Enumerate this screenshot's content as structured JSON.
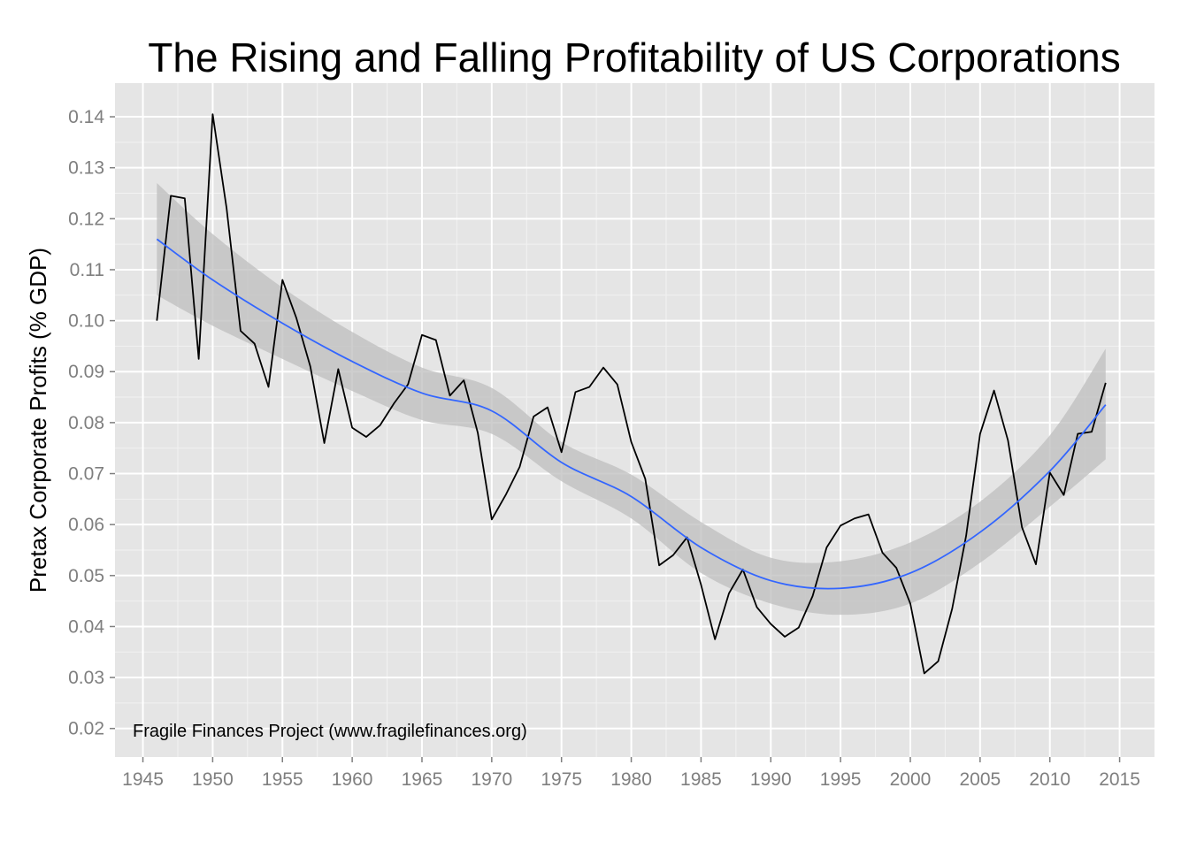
{
  "chart_data": {
    "type": "line",
    "title": "The Rising and Falling Profitability of US Corporations",
    "xlabel": "",
    "ylabel": "Pretax Corporate Profits (% GDP)",
    "annotation": "Fragile Finances Project (www.fragilefinances.org)",
    "xlim": [
      1943,
      2017.5
    ],
    "ylim": [
      0.0144,
      0.1466
    ],
    "x_ticks": [
      1945,
      1950,
      1955,
      1960,
      1965,
      1970,
      1975,
      1980,
      1985,
      1990,
      1995,
      2000,
      2005,
      2010,
      2015
    ],
    "y_ticks": [
      0.02,
      0.03,
      0.04,
      0.05,
      0.06,
      0.07,
      0.08,
      0.09,
      0.1,
      0.11,
      0.12,
      0.13,
      0.14
    ],
    "y_tick_labels": [
      "0.02",
      "0.03",
      "0.04",
      "0.05",
      "0.06",
      "0.07",
      "0.08",
      "0.09",
      "0.10",
      "0.11",
      "0.12",
      "0.13",
      "0.14"
    ],
    "grid": true,
    "colors": {
      "panel": "#e5e5e5",
      "grid": "#ffffff",
      "line": "#000000",
      "smooth": "#3366ff",
      "band": "#bdbdbd"
    },
    "series": [
      {
        "type": "line",
        "x": [
          1946,
          1947,
          1948,
          1949,
          1950,
          1951,
          1952,
          1953,
          1954,
          1955,
          1956,
          1957,
          1958,
          1959,
          1960,
          1961,
          1962,
          1963,
          1964,
          1965,
          1966,
          1967,
          1968,
          1969,
          1970,
          1971,
          1972,
          1973,
          1974,
          1975,
          1976,
          1977,
          1978,
          1979,
          1980,
          1981,
          1982,
          1983,
          1984,
          1985,
          1986,
          1987,
          1988,
          1989,
          1990,
          1991,
          1992,
          1993,
          1994,
          1995,
          1996,
          1997,
          1998,
          1999,
          2000,
          2001,
          2002,
          2003,
          2004,
          2005,
          2006,
          2007,
          2008,
          2009,
          2010,
          2011,
          2012,
          2013,
          2014
        ],
        "values": [
          0.1,
          0.1245,
          0.124,
          0.0925,
          0.1405,
          0.122,
          0.098,
          0.0955,
          0.087,
          0.108,
          0.1005,
          0.091,
          0.076,
          0.0905,
          0.079,
          0.0772,
          0.0795,
          0.0838,
          0.0875,
          0.0972,
          0.0962,
          0.0853,
          0.0883,
          0.078,
          0.061,
          0.0658,
          0.0713,
          0.0812,
          0.083,
          0.0742,
          0.086,
          0.087,
          0.0908,
          0.0875,
          0.0762,
          0.069,
          0.052,
          0.054,
          0.0575,
          0.0482,
          0.0375,
          0.0465,
          0.0512,
          0.0438,
          0.0405,
          0.038,
          0.0398,
          0.046,
          0.0555,
          0.0598,
          0.0612,
          0.062,
          0.0545,
          0.0515,
          0.0445,
          0.0308,
          0.0332,
          0.0435,
          0.0578,
          0.0778,
          0.0863,
          0.0765,
          0.0595,
          0.0522,
          0.0702,
          0.0658,
          0.0778,
          0.0782,
          0.0878
        ]
      },
      {
        "type": "smooth",
        "x": [
          1946,
          1950,
          1955,
          1960,
          1965,
          1970,
          1975,
          1980,
          1985,
          1990,
          1995,
          2000,
          2005,
          2010,
          2014
        ],
        "values": [
          0.116,
          0.108,
          0.0995,
          0.092,
          0.0858,
          0.0823,
          0.0722,
          0.0655,
          0.0555,
          0.049,
          0.0475,
          0.0505,
          0.0585,
          0.0705,
          0.0835
        ],
        "lower": [
          0.105,
          0.099,
          0.0925,
          0.0862,
          0.0805,
          0.0778,
          0.0685,
          0.0612,
          0.0505,
          0.0445,
          0.0423,
          0.0445,
          0.0525,
          0.0635,
          0.0728
        ],
        "upper": [
          0.127,
          0.117,
          0.1065,
          0.0978,
          0.0908,
          0.0868,
          0.0762,
          0.0698,
          0.0605,
          0.0535,
          0.0528,
          0.0565,
          0.0645,
          0.0775,
          0.0945
        ]
      }
    ]
  }
}
